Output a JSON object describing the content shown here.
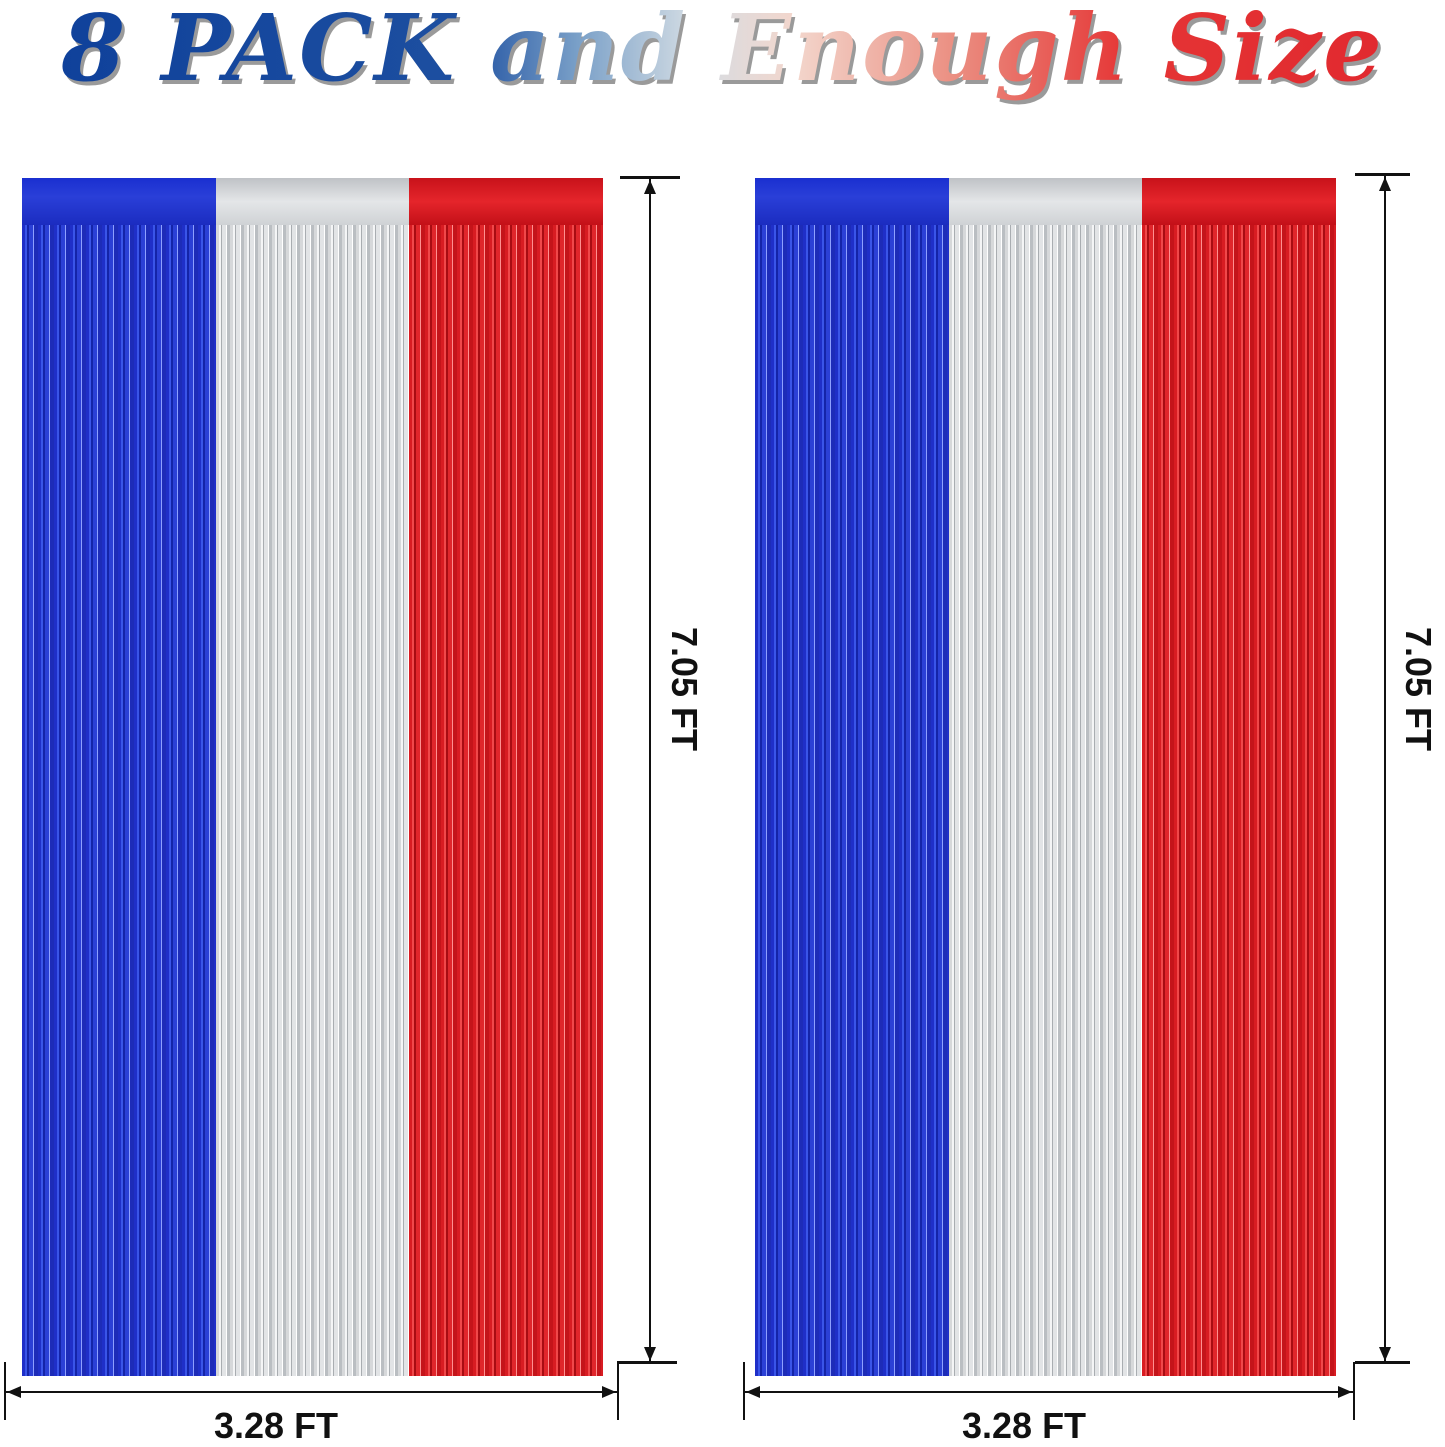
{
  "headline": "8 PACK and Enough Size",
  "colors": {
    "blue": "#1f2fc8",
    "silver": "#d6d8da",
    "red": "#d81c22"
  },
  "curtains": [
    {
      "height_label": "7.05 FT",
      "width_label": "3.28 FT",
      "strips": [
        "blue",
        "silver",
        "red"
      ]
    },
    {
      "height_label": "7.05 FT",
      "width_label": "3.28 FT",
      "strips": [
        "blue",
        "silver",
        "red"
      ]
    }
  ]
}
